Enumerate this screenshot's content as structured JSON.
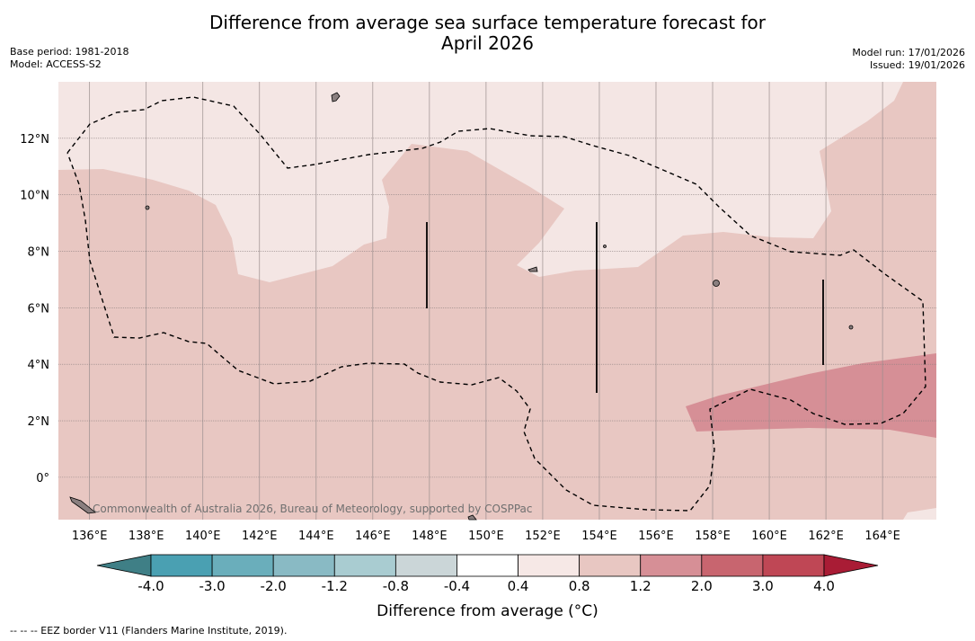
{
  "title": {
    "line1": "Difference from average sea surface temperature forecast for",
    "line2": "April 2026"
  },
  "meta_left": {
    "base_period": "Base period: 1981-2018",
    "model": "Model: ACCESS-S2"
  },
  "meta_right": {
    "model_run": "Model run: 17/01/2026",
    "issued": "Issued: 19/01/2026"
  },
  "map": {
    "lon_labels": [
      "136°E",
      "138°E",
      "140°E",
      "142°E",
      "144°E",
      "146°E",
      "148°E",
      "150°E",
      "152°E",
      "154°E",
      "156°E",
      "158°E",
      "160°E",
      "162°E",
      "164°E"
    ],
    "lat_labels": [
      "12°N",
      "10°N",
      "8°N",
      "6°N",
      "4°N",
      "2°N",
      "0°"
    ],
    "lon_range": [
      134.9,
      165.9
    ],
    "lat_range": [
      -1.5,
      14.0
    ],
    "watermark": "Commonwealth of Australia 2026, Bureau of Meteorology, supported by COSPPac"
  },
  "colorbar": {
    "label": "Difference from average (°C)",
    "ticks": [
      "-4.0",
      "-3.0",
      "-2.0",
      "-1.2",
      "-0.8",
      "-0.4",
      "0.4",
      "0.8",
      "1.2",
      "2.0",
      "3.0",
      "4.0"
    ],
    "colors": [
      "#3f7f86",
      "#4aa0b2",
      "#6aaebb",
      "#89bac4",
      "#a9ccd1",
      "#cbd6d8",
      "#ffffff",
      "#f6e8e6",
      "#e8c7c2",
      "#d68f96",
      "#c8656f",
      "#bf4755",
      "#a91c35"
    ]
  },
  "footnote": "-- -- -- EEZ border V11 (Flanders Marine Institute, 2019)."
}
